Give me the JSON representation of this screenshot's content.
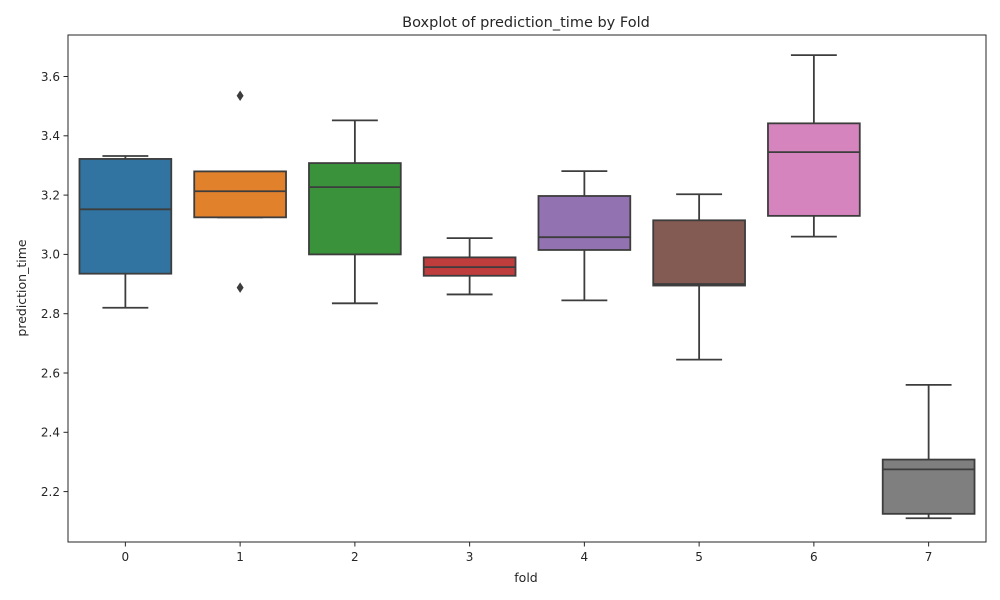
{
  "chart_data": {
    "type": "box",
    "title": "Boxplot of prediction_time by Fold",
    "xlabel": "fold",
    "ylabel": "prediction_time",
    "categories": [
      "0",
      "1",
      "2",
      "3",
      "4",
      "5",
      "6",
      "7"
    ],
    "ylim": [
      2.03,
      3.74
    ],
    "yticks": [
      2.2,
      2.4,
      2.6,
      2.8,
      3.0,
      3.2,
      3.4,
      3.6
    ],
    "ytick_labels": [
      "2.2",
      "2.4",
      "2.6",
      "2.8",
      "3.0",
      "3.2",
      "3.4",
      "3.6"
    ],
    "grid": false,
    "legend": false,
    "boxes": [
      {
        "category": "0",
        "whisker_low": 2.82,
        "q1": 2.935,
        "median": 3.152,
        "q3": 3.322,
        "whisker_high": 3.332,
        "outliers": [],
        "color": "#3274a1"
      },
      {
        "category": "1",
        "whisker_low": 3.125,
        "q1": 3.125,
        "median": 3.213,
        "q3": 3.28,
        "whisker_high": 3.28,
        "outliers": [
          2.888,
          3.535
        ],
        "color": "#e1812c"
      },
      {
        "category": "2",
        "whisker_low": 2.835,
        "q1": 3.0,
        "median": 3.227,
        "q3": 3.308,
        "whisker_high": 3.452,
        "outliers": [],
        "color": "#3a923a"
      },
      {
        "category": "3",
        "whisker_low": 2.865,
        "q1": 2.928,
        "median": 2.957,
        "q3": 2.99,
        "whisker_high": 3.055,
        "outliers": [],
        "color": "#c03d3e"
      },
      {
        "category": "4",
        "whisker_low": 2.845,
        "q1": 3.015,
        "median": 3.058,
        "q3": 3.197,
        "whisker_high": 3.281,
        "outliers": [],
        "color": "#9372b2"
      },
      {
        "category": "5",
        "whisker_low": 2.645,
        "q1": 2.895,
        "median": 2.9,
        "q3": 3.115,
        "whisker_high": 3.203,
        "outliers": [],
        "color": "#845b53"
      },
      {
        "category": "6",
        "whisker_low": 3.06,
        "q1": 3.13,
        "median": 3.345,
        "q3": 3.442,
        "whisker_high": 3.672,
        "outliers": [],
        "color": "#d684bd"
      },
      {
        "category": "7",
        "whisker_low": 2.11,
        "q1": 2.125,
        "median": 2.275,
        "q3": 2.308,
        "whisker_high": 2.56,
        "outliers": [],
        "color": "#7f7f7f"
      }
    ],
    "line_color": "#3d3d3d"
  }
}
